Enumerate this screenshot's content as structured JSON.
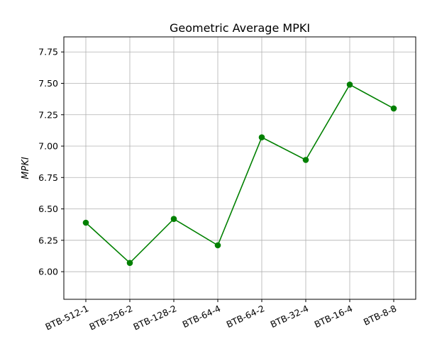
{
  "chart_data": {
    "type": "line",
    "title": "Geometric Average MPKI",
    "xlabel": "",
    "ylabel": "MPKI",
    "categories": [
      "BTB-512-1",
      "BTB-256-2",
      "BTB-128-2",
      "BTB-64-4",
      "BTB-64-2",
      "BTB-32-4",
      "BTB-16-4",
      "BTB-8-8"
    ],
    "series": [
      {
        "values": [
          6.39,
          6.07,
          6.42,
          6.21,
          7.07,
          6.89,
          7.49,
          7.3
        ],
        "color": "#008000",
        "marker": "circle"
      }
    ],
    "ylim": [
      5.78,
      7.87
    ],
    "yticks": [
      6.0,
      6.25,
      6.5,
      6.75,
      7.0,
      7.25,
      7.5,
      7.75
    ],
    "ytick_labels": [
      "6.00",
      "6.25",
      "6.50",
      "6.75",
      "7.00",
      "7.25",
      "7.50",
      "7.75"
    ],
    "grid": true,
    "x_tick_rotation_deg": 25
  }
}
